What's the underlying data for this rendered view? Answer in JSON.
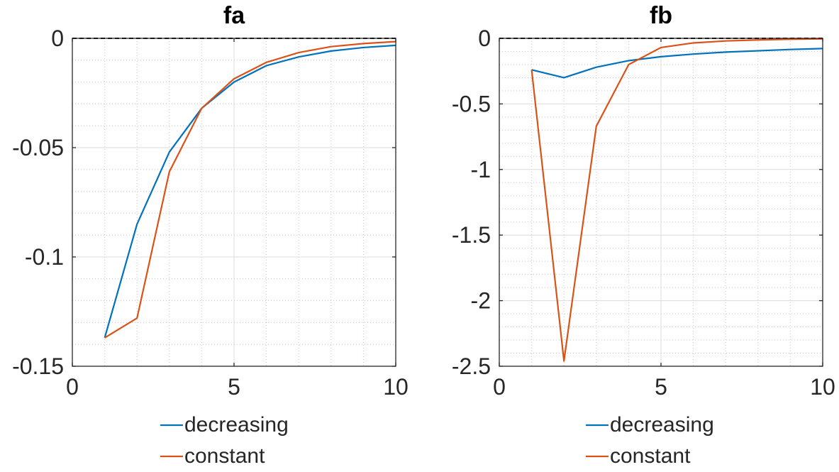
{
  "chart_data": [
    {
      "type": "line",
      "title": "fa",
      "xlabel": "",
      "ylabel": "",
      "xlim": [
        0,
        10
      ],
      "ylim": [
        -0.15,
        0
      ],
      "xticks": [
        "0",
        "5",
        "10"
      ],
      "yticks": [
        "0",
        "-0.05",
        "-0.1",
        "-0.15"
      ],
      "grid": true,
      "minor_grid": true,
      "legend_position": "bottom",
      "x": [
        1,
        2,
        3,
        4,
        5,
        6,
        7,
        8,
        9,
        10
      ],
      "series": [
        {
          "name": "decreasing",
          "color": "#0072BD",
          "values": [
            -0.137,
            -0.085,
            -0.052,
            -0.032,
            -0.02,
            -0.0125,
            -0.0085,
            -0.0058,
            -0.0042,
            -0.0032
          ]
        },
        {
          "name": "constant",
          "color": "#D95319",
          "values": [
            -0.137,
            -0.128,
            -0.061,
            -0.032,
            -0.0185,
            -0.011,
            -0.0065,
            -0.0038,
            -0.0024,
            -0.0015
          ]
        }
      ],
      "reference_line": {
        "y": 0,
        "style": "dashed",
        "color": "#000000"
      }
    },
    {
      "type": "line",
      "title": "fb",
      "xlabel": "",
      "ylabel": "",
      "xlim": [
        0,
        10
      ],
      "ylim": [
        -2.5,
        0
      ],
      "xticks": [
        "0",
        "5",
        "10"
      ],
      "yticks": [
        "0",
        "-0.5",
        "-1",
        "-1.5",
        "-2",
        "-2.5"
      ],
      "grid": true,
      "minor_grid": true,
      "legend_position": "bottom",
      "x": [
        1,
        2,
        3,
        4,
        5,
        6,
        7,
        8,
        9,
        10
      ],
      "series": [
        {
          "name": "decreasing",
          "color": "#0072BD",
          "values": [
            -0.24,
            -0.3,
            -0.22,
            -0.17,
            -0.14,
            -0.12,
            -0.105,
            -0.095,
            -0.085,
            -0.078
          ]
        },
        {
          "name": "constant",
          "color": "#D95319",
          "values": [
            -0.24,
            -2.46,
            -0.67,
            -0.2,
            -0.07,
            -0.035,
            -0.02,
            -0.012,
            -0.007,
            -0.004
          ]
        }
      ],
      "reference_line": {
        "y": 0,
        "style": "dashed",
        "color": "#000000"
      }
    }
  ]
}
